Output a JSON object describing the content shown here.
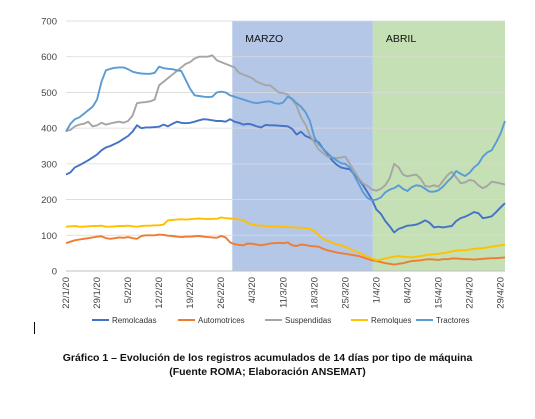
{
  "chart_data": {
    "type": "line",
    "title": "",
    "xlabel": "",
    "ylabel": "",
    "ylim": [
      0,
      700
    ],
    "yticks": [
      0,
      100,
      200,
      300,
      400,
      500,
      600,
      700
    ],
    "grid": "horizontal",
    "legend_position": "bottom",
    "x": [
      "22/1/20",
      "23/1/20",
      "24/1/20",
      "25/1/20",
      "26/1/20",
      "27/1/20",
      "28/1/20",
      "29/1/20",
      "30/1/20",
      "31/1/20",
      "1/2/20",
      "2/2/20",
      "3/2/20",
      "4/2/20",
      "5/2/20",
      "6/2/20",
      "7/2/20",
      "8/2/20",
      "9/2/20",
      "10/2/20",
      "11/2/20",
      "12/2/20",
      "13/2/20",
      "14/2/20",
      "15/2/20",
      "16/2/20",
      "17/2/20",
      "18/2/20",
      "19/2/20",
      "20/2/20",
      "21/2/20",
      "22/2/20",
      "23/2/20",
      "24/2/20",
      "25/2/20",
      "26/2/20",
      "27/2/20",
      "28/2/20",
      "29/2/20",
      "1/3/20",
      "2/3/20",
      "3/3/20",
      "4/3/20",
      "5/3/20",
      "6/3/20",
      "7/3/20",
      "8/3/20",
      "9/3/20",
      "10/3/20",
      "11/3/20",
      "12/3/20",
      "13/3/20",
      "14/3/20",
      "15/3/20",
      "16/3/20",
      "17/3/20",
      "18/3/20",
      "19/3/20",
      "20/3/20",
      "21/3/20",
      "22/3/20",
      "23/3/20",
      "24/3/20",
      "25/3/20",
      "26/3/20",
      "27/3/20",
      "28/3/20",
      "29/3/20",
      "30/3/20",
      "31/3/20",
      "1/4/20",
      "2/4/20",
      "3/4/20",
      "4/4/20",
      "5/4/20",
      "6/4/20",
      "7/4/20",
      "8/4/20",
      "9/4/20",
      "10/4/20",
      "11/4/20",
      "12/4/20",
      "13/4/20",
      "14/4/20",
      "15/4/20",
      "16/4/20",
      "17/4/20",
      "18/4/20",
      "19/4/20",
      "20/4/20",
      "21/4/20",
      "22/4/20",
      "23/4/20",
      "24/4/20",
      "25/4/20",
      "26/4/20",
      "27/4/20",
      "28/4/20",
      "29/4/20",
      "30/4/20"
    ],
    "x_tick_labels": [
      "22/1/20",
      "29/1/20",
      "5/2/20",
      "12/2/20",
      "19/2/20",
      "26/2/20",
      "4/3/20",
      "11/3/20",
      "18/3/20",
      "25/3/20",
      "1/4/20",
      "8/4/20",
      "15/4/20",
      "22/4/20",
      "29/4/20"
    ],
    "series": [
      {
        "name": "Remolcadas",
        "color": "#4472c4",
        "values": [
          270,
          276,
          290,
          296,
          303,
          310,
          318,
          326,
          338,
          346,
          350,
          356,
          362,
          370,
          378,
          390,
          408,
          400,
          402,
          402,
          403,
          404,
          410,
          405,
          412,
          418,
          415,
          414,
          415,
          418,
          422,
          425,
          424,
          422,
          420,
          420,
          418,
          425,
          418,
          415,
          410,
          412,
          410,
          405,
          402,
          409,
          408,
          408,
          407,
          406,
          405,
          398,
          382,
          390,
          378,
          373,
          365,
          360,
          342,
          327,
          310,
          298,
          290,
          287,
          285,
          270,
          258,
          240,
          220,
          200,
          172,
          160,
          140,
          125,
          108,
          118,
          122,
          127,
          128,
          130,
          135,
          142,
          135,
          122,
          124,
          122,
          124,
          126,
          140,
          148,
          152,
          158,
          165,
          162,
          148,
          150,
          153,
          165,
          178,
          190
        ]
      },
      {
        "name": "Automotrices",
        "color": "#ed7d31",
        "values": [
          78,
          82,
          86,
          88,
          90,
          92,
          94,
          96,
          97,
          92,
          90,
          92,
          94,
          93,
          95,
          92,
          90,
          98,
          100,
          100,
          100,
          102,
          101,
          99,
          98,
          96,
          95,
          96,
          96,
          97,
          98,
          96,
          95,
          94,
          93,
          98,
          94,
          80,
          75,
          73,
          72,
          77,
          76,
          74,
          72,
          74,
          77,
          78,
          79,
          78,
          80,
          72,
          70,
          74,
          73,
          70,
          69,
          68,
          62,
          58,
          55,
          52,
          50,
          48,
          46,
          44,
          42,
          38,
          34,
          30,
          28,
          25,
          22,
          20,
          18,
          20,
          22,
          25,
          28,
          29,
          30,
          32,
          33,
          32,
          31,
          33,
          33,
          35,
          35,
          34,
          33,
          33,
          32,
          33,
          34,
          35,
          36,
          36,
          37,
          38
        ]
      },
      {
        "name": "Suspendidas",
        "color": "#a5a5a5",
        "values": [
          392,
          395,
          405,
          410,
          412,
          418,
          405,
          408,
          415,
          410,
          413,
          416,
          418,
          415,
          420,
          435,
          470,
          472,
          473,
          475,
          480,
          520,
          530,
          540,
          550,
          560,
          570,
          580,
          585,
          595,
          600,
          600,
          600,
          604,
          590,
          585,
          580,
          575,
          570,
          555,
          550,
          545,
          540,
          530,
          525,
          520,
          520,
          510,
          500,
          498,
          494,
          480,
          462,
          430,
          410,
          380,
          360,
          340,
          330,
          320,
          318,
          316,
          318,
          320,
          300,
          280,
          260,
          245,
          238,
          228,
          225,
          230,
          240,
          260,
          300,
          290,
          270,
          265,
          268,
          270,
          258,
          238,
          236,
          240,
          236,
          252,
          268,
          278,
          262,
          246,
          248,
          255,
          252,
          240,
          232,
          238,
          250,
          248,
          245,
          242
        ]
      },
      {
        "name": "Remolques",
        "color": "#ffc000",
        "values": [
          124,
          125,
          126,
          124,
          124,
          125,
          126,
          126,
          127,
          124,
          124,
          125,
          126,
          126,
          127,
          125,
          124,
          126,
          127,
          127,
          128,
          128,
          130,
          142,
          143,
          144,
          145,
          144,
          145,
          146,
          147,
          146,
          145,
          146,
          146,
          150,
          148,
          147,
          146,
          144,
          143,
          134,
          130,
          128,
          127,
          126,
          125,
          125,
          124,
          124,
          123,
          122,
          122,
          121,
          120,
          118,
          112,
          100,
          90,
          84,
          80,
          75,
          72,
          68,
          62,
          56,
          52,
          46,
          40,
          35,
          30,
          32,
          35,
          38,
          40,
          42,
          40,
          39,
          38,
          40,
          42,
          44,
          46,
          47,
          48,
          50,
          52,
          55,
          57,
          58,
          58,
          60,
          62,
          63,
          64,
          66,
          68,
          70,
          72,
          74
        ]
      },
      {
        "name": "Tractores",
        "color": "#5b9bd5",
        "values": [
          390,
          412,
          425,
          430,
          440,
          450,
          460,
          480,
          530,
          562,
          566,
          569,
          570,
          570,
          565,
          558,
          555,
          553,
          552,
          552,
          555,
          572,
          568,
          566,
          565,
          562,
          560,
          535,
          510,
          492,
          490,
          488,
          487,
          488,
          500,
          502,
          500,
          492,
          488,
          484,
          480,
          476,
          472,
          470,
          472,
          474,
          475,
          470,
          468,
          472,
          488,
          482,
          470,
          460,
          445,
          420,
          375,
          355,
          342,
          330,
          318,
          310,
          302,
          300,
          290,
          268,
          244,
          220,
          204,
          198,
          200,
          206,
          220,
          228,
          232,
          240,
          230,
          224,
          235,
          240,
          238,
          230,
          222,
          222,
          226,
          236,
          250,
          262,
          280,
          272,
          266,
          275,
          290,
          300,
          320,
          332,
          338,
          360,
          385,
          420
        ]
      }
    ]
  },
  "periods": {
    "march_label": "MARZO",
    "april_label": "ABRIL"
  },
  "colors": {
    "march_band": "#b4c7e7",
    "april_band": "#c5e0b4",
    "grid": "#d9d9d9",
    "axis": "#bfbfbf"
  },
  "caption": {
    "line1": "Gráfico 1 – Evolución de los registros acumulados de 14 días por tipo de máquina",
    "line2": "(Fuente ROMA; Elaboración ANSEMAT)"
  }
}
